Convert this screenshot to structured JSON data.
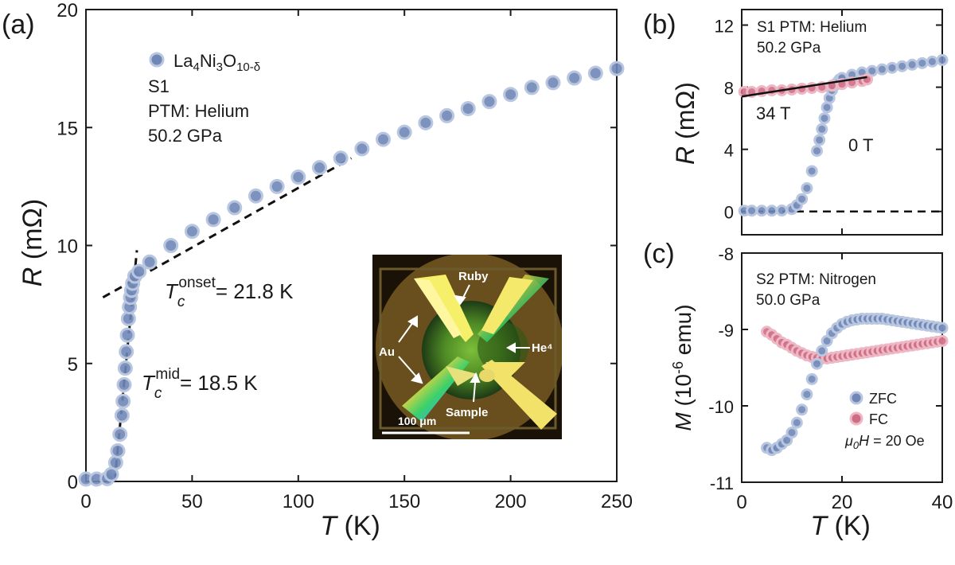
{
  "colors": {
    "blue_marker_fill": "#6f86b6",
    "blue_marker_stroke": "#b9c6e0",
    "pink_marker_fill": "#cf6d86",
    "pink_marker_stroke": "#edb7c4",
    "axis": "#1a1a1a"
  },
  "chart_data": [
    {
      "panel": "(a)",
      "type": "scatter",
      "xlabel_var": "T",
      "xlabel_unit": " (K)",
      "ylabel_var": "R",
      "ylabel_unit": " (mΩ)",
      "xlim": [
        0,
        250
      ],
      "ylim": [
        0,
        20
      ],
      "xticks": [
        "0",
        "50",
        "100",
        "150",
        "200",
        "250"
      ],
      "yticks": [
        "0",
        "5",
        "10",
        "15",
        "20"
      ],
      "legend": {
        "sample": "S1",
        "ptm": "PTM: Helium",
        "pressure": "50.2 GPa"
      },
      "series": [
        {
          "name": "La4Ni3O10-δ",
          "x": [
            0,
            5,
            10,
            12,
            14,
            15,
            16,
            17,
            17.5,
            18,
            18.5,
            19,
            19.5,
            20,
            20.5,
            21,
            21.5,
            22,
            23,
            25,
            30,
            40,
            50,
            60,
            70,
            80,
            90,
            100,
            110,
            120,
            130,
            140,
            150,
            160,
            170,
            180,
            190,
            200,
            210,
            220,
            230,
            240,
            250
          ],
          "y": [
            0.1,
            0.1,
            0.12,
            0.3,
            0.8,
            1.3,
            2.0,
            2.8,
            3.4,
            4.1,
            4.8,
            5.5,
            6.2,
            6.9,
            7.4,
            7.8,
            8.1,
            8.4,
            8.7,
            8.9,
            9.3,
            10.0,
            10.6,
            11.1,
            11.6,
            12.1,
            12.5,
            12.9,
            13.3,
            13.7,
            14.1,
            14.5,
            14.8,
            15.2,
            15.5,
            15.8,
            16.1,
            16.4,
            16.7,
            16.9,
            17.1,
            17.3,
            17.5
          ]
        }
      ],
      "guide_lines": [
        {
          "x": [
            8,
            125
          ],
          "y": [
            7.8,
            13.7
          ]
        },
        {
          "x": [
            13.5,
            24
          ],
          "y": [
            0,
            9.8
          ]
        }
      ],
      "annotations": [
        {
          "var": "T",
          "sub": "c",
          "sup": "onset",
          "text": "= 21.8 K"
        },
        {
          "var": "T",
          "sub": "c",
          "sup": "mid",
          "text": "= 18.5 K"
        }
      ],
      "inset": {
        "labels": [
          "Ruby",
          "Au",
          "He⁴",
          "Sample"
        ],
        "scale_bar": "100 μm"
      }
    },
    {
      "panel": "(b)",
      "type": "scatter",
      "xlim": [
        0,
        40
      ],
      "ylim": [
        -1.5,
        13
      ],
      "yticks": [
        "0",
        "4",
        "8",
        "12"
      ],
      "ylabel_var": "R",
      "ylabel_unit": " (mΩ)",
      "legend": {
        "line1": "S1  PTM: Helium",
        "line2": "50.2 GPa"
      },
      "series": [
        {
          "name": "0 T",
          "x": [
            0.5,
            2,
            4,
            6,
            8,
            10,
            11,
            12,
            13,
            14,
            15,
            15.5,
            16,
            16.5,
            17,
            17.5,
            18,
            18.5,
            19,
            19.5,
            20,
            22,
            24,
            26,
            28,
            30,
            32,
            34,
            36,
            38,
            40
          ],
          "y": [
            0.05,
            0.05,
            0.05,
            0.05,
            0.06,
            0.15,
            0.4,
            0.8,
            1.5,
            2.6,
            3.9,
            4.6,
            5.3,
            6.0,
            6.7,
            7.3,
            7.8,
            8.1,
            8.3,
            8.5,
            8.6,
            8.8,
            8.95,
            9.05,
            9.15,
            9.25,
            9.35,
            9.45,
            9.55,
            9.65,
            9.75
          ]
        },
        {
          "name": "34 T",
          "x": [
            0.5,
            2,
            4,
            6,
            8,
            10,
            12,
            14,
            16,
            18,
            20,
            22,
            24,
            25
          ],
          "y": [
            7.7,
            7.7,
            7.75,
            7.8,
            7.8,
            7.85,
            7.9,
            7.95,
            8.0,
            8.1,
            8.2,
            8.3,
            8.4,
            8.5
          ]
        }
      ],
      "fit_line": {
        "x": [
          0,
          25
        ],
        "y": [
          7.4,
          8.65
        ]
      },
      "zero_line": {
        "y": 0
      },
      "labels": {
        "field_high": "34 T",
        "field_zero": "0 T"
      }
    },
    {
      "panel": "(c)",
      "type": "scatter",
      "xlabel_var": "T",
      "xlabel_unit": " (K)",
      "ylabel_var": "M",
      "ylabel_unit_pre": " (10",
      "ylabel_unit_sup": "-6",
      "ylabel_unit_post": " emu)",
      "xlim": [
        0,
        40
      ],
      "ylim": [
        -11,
        -8
      ],
      "xticks": [
        "0",
        "20",
        "40"
      ],
      "yticks": [
        "-8",
        "-9",
        "-10",
        "-11"
      ],
      "legend": {
        "line1": "S2  PTM: Nitrogen",
        "line2": "50.0 GPa"
      },
      "series": [
        {
          "name": "ZFC",
          "x": [
            5,
            6,
            7,
            8,
            9,
            10,
            11,
            12,
            13,
            14,
            15,
            16,
            17,
            18,
            19,
            20,
            21,
            22,
            23,
            24,
            25,
            26,
            27,
            28,
            29,
            30,
            31,
            32,
            33,
            34,
            35,
            36,
            37,
            38,
            39,
            40
          ],
          "y": [
            -10.55,
            -10.58,
            -10.55,
            -10.5,
            -10.45,
            -10.35,
            -10.22,
            -10.05,
            -9.85,
            -9.65,
            -9.45,
            -9.28,
            -9.15,
            -9.05,
            -8.98,
            -8.93,
            -8.9,
            -8.88,
            -8.87,
            -8.86,
            -8.86,
            -8.86,
            -8.86,
            -8.86,
            -8.87,
            -8.88,
            -8.89,
            -8.9,
            -8.91,
            -8.92,
            -8.93,
            -8.94,
            -8.95,
            -8.96,
            -8.97,
            -8.98
          ]
        },
        {
          "name": "FC",
          "x": [
            5,
            6,
            7,
            8,
            9,
            10,
            11,
            12,
            13,
            14,
            15,
            16,
            17,
            18,
            19,
            20,
            21,
            22,
            23,
            24,
            25,
            26,
            27,
            28,
            29,
            30,
            31,
            32,
            33,
            34,
            35,
            36,
            37,
            38,
            39,
            40
          ],
          "y": [
            -9.03,
            -9.07,
            -9.12,
            -9.17,
            -9.2,
            -9.24,
            -9.28,
            -9.31,
            -9.34,
            -9.36,
            -9.37,
            -9.38,
            -9.38,
            -9.37,
            -9.36,
            -9.35,
            -9.34,
            -9.33,
            -9.32,
            -9.31,
            -9.3,
            -9.29,
            -9.28,
            -9.27,
            -9.26,
            -9.25,
            -9.24,
            -9.23,
            -9.22,
            -9.21,
            -9.2,
            -9.19,
            -9.18,
            -9.17,
            -9.16,
            -9.15
          ]
        }
      ],
      "field_label": {
        "var_main": "μ",
        "var_sub": "0",
        "var_H": "H",
        "text": " = 20 Oe"
      }
    }
  ],
  "panel_labels": [
    "(a)",
    "(b)",
    "(c)"
  ]
}
